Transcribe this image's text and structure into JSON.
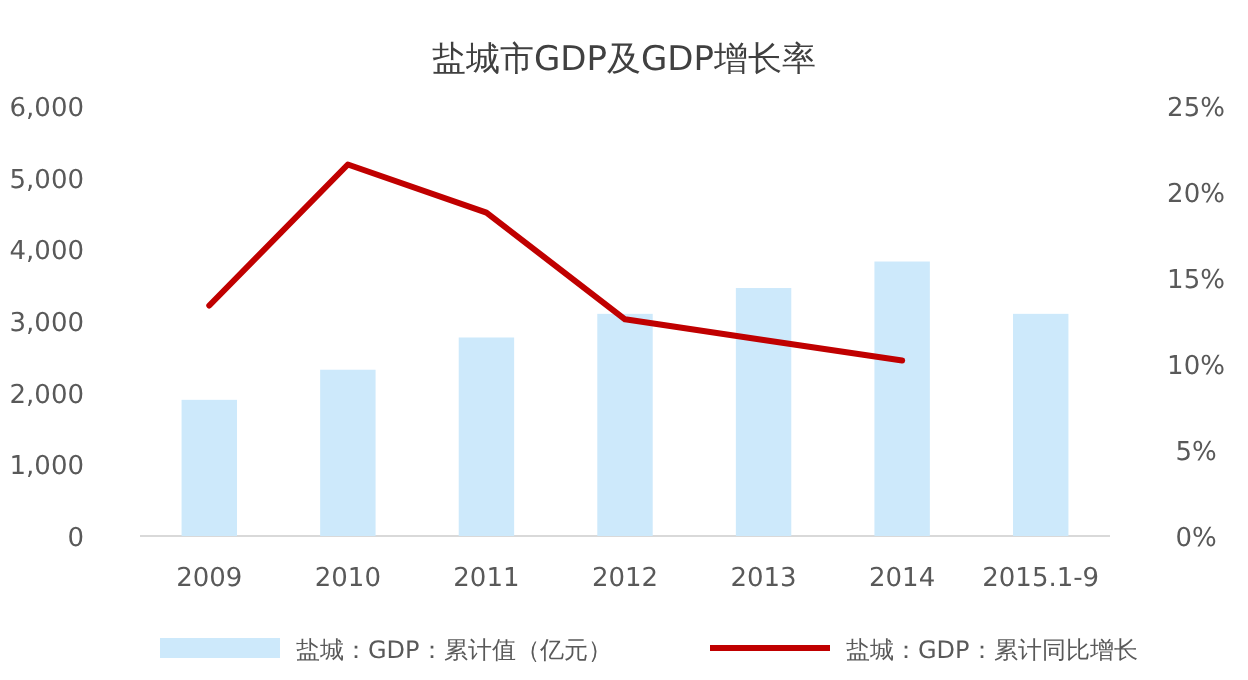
{
  "chart_data": {
    "type": "bar",
    "title": "盐城市GDP及GDP增长率",
    "categories": [
      "2009",
      "2010",
      "2011",
      "2012",
      "2013",
      "2014",
      "2015.1-9"
    ],
    "series": [
      {
        "name": "盐城：GDP：累计值（亿元）",
        "color": "#cde9fb",
        "values": [
          1900,
          2320,
          2770,
          3100,
          3460,
          3830,
          3100
        ]
      },
      {
        "name": "盐城：GDP：累计同比增长",
        "type": "line",
        "axis": "y2",
        "color": "#c00000",
        "values": [
          13.4,
          21.6,
          18.8,
          12.6,
          11.4,
          10.2,
          null
        ]
      }
    ],
    "ylim": [
      0,
      6000
    ],
    "yticks": [
      {
        "value": 0,
        "label": "0"
      },
      {
        "value": 1000,
        "label": "1,000"
      },
      {
        "value": 2000,
        "label": "2,000"
      },
      {
        "value": 3000,
        "label": "3,000"
      },
      {
        "value": 4000,
        "label": "4,000"
      },
      {
        "value": 5000,
        "label": "5,000"
      },
      {
        "value": 6000,
        "label": "6,000"
      }
    ],
    "y2lim": [
      0,
      25
    ],
    "y2ticks": [
      {
        "value": 0,
        "label": "0%"
      },
      {
        "value": 5,
        "label": "5%"
      },
      {
        "value": 10,
        "label": "10%"
      },
      {
        "value": 15,
        "label": "15%"
      },
      {
        "value": 20,
        "label": "20%"
      },
      {
        "value": 25,
        "label": "25%"
      }
    ],
    "legend": "bottom"
  }
}
